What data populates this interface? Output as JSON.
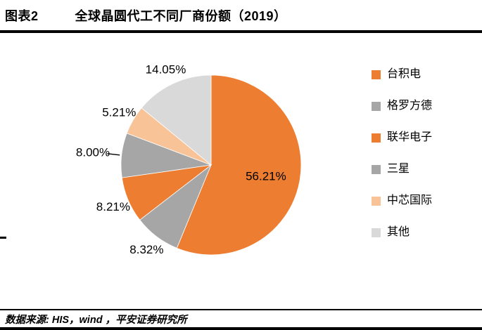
{
  "header": {
    "figure_label": "图表2",
    "title": "全球晶圆代工不同厂商份额（2019）"
  },
  "chart_data": {
    "type": "pie",
    "title": "全球晶圆代工不同厂商份额（2019）",
    "start_angle_deg": -90,
    "direction": "clockwise",
    "legend_position": "right",
    "unit": "%",
    "slices": [
      {
        "label": "台积电",
        "value": 56.21,
        "display": "56.21%",
        "color": "#ED7D31",
        "label_inside": true
      },
      {
        "label": "格罗方德",
        "value": 8.32,
        "display": "8.32%",
        "color": "#A6A6A6"
      },
      {
        "label": "联华电子",
        "value": 8.21,
        "display": "8.21%",
        "color": "#ED7D31"
      },
      {
        "label": "三星",
        "value": 8.0,
        "display": "8.00%",
        "color": "#A6A6A6",
        "leader": true
      },
      {
        "label": "中芯国际",
        "value": 5.21,
        "display": "5.21%",
        "color": "#F8C397"
      },
      {
        "label": "其他",
        "value": 14.05,
        "display": "14.05%",
        "color": "#D9D9D9"
      }
    ]
  },
  "footer": {
    "source": "数据来源: HIS，wind ，平安证券研究所"
  }
}
